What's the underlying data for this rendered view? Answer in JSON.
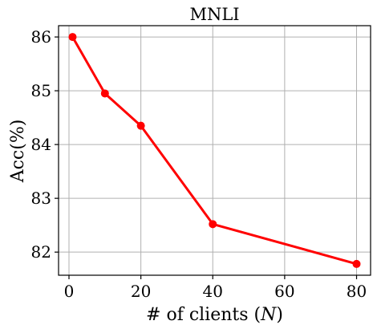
{
  "chart_data": {
    "type": "line",
    "title": "MNLI",
    "xlabel_prefix": "# of clients (",
    "xlabel_var": "N",
    "xlabel_suffix": ")",
    "ylabel": "Acc(%)",
    "x_ticks": [
      0,
      20,
      40,
      60,
      80
    ],
    "y_ticks": [
      82,
      83,
      84,
      85,
      86
    ],
    "xlim": [
      -2.9,
      83.9
    ],
    "ylim": [
      81.57,
      86.21
    ],
    "grid": true,
    "series": [
      {
        "color": "#ff0000",
        "marker": "circle",
        "x": [
          1,
          10,
          20,
          40,
          80
        ],
        "y": [
          86.0,
          84.95,
          84.35,
          82.52,
          81.78
        ]
      }
    ]
  }
}
